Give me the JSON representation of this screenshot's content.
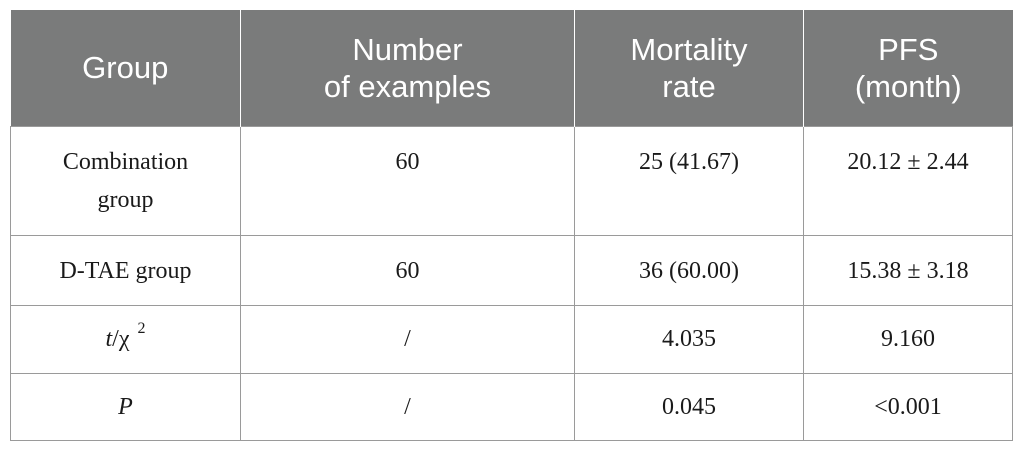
{
  "table": {
    "headers": [
      {
        "line1": "Group",
        "line2": ""
      },
      {
        "line1": "Number",
        "line2": "of examples"
      },
      {
        "line1": "Mortality",
        "line2": "rate"
      },
      {
        "line1": "PFS",
        "line2": "(month)"
      }
    ],
    "rows": [
      {
        "group_line1": "Combination",
        "group_line2": "group",
        "number": "60",
        "mortality": "25 (41.67)",
        "pfs": "20.12 ± 2.44"
      },
      {
        "group_line1": "D-TAE group",
        "group_line2": "",
        "number": "60",
        "mortality": "36 (60.00)",
        "pfs": "15.38 ± 3.18"
      },
      {
        "group_t": "t",
        "group_sep": "/χ",
        "group_sup": "2",
        "number": "/",
        "mortality": "4.035",
        "pfs": "9.160"
      },
      {
        "group_line1": "P",
        "number": "/",
        "mortality": "0.045",
        "pfs": "<0.001"
      }
    ]
  }
}
